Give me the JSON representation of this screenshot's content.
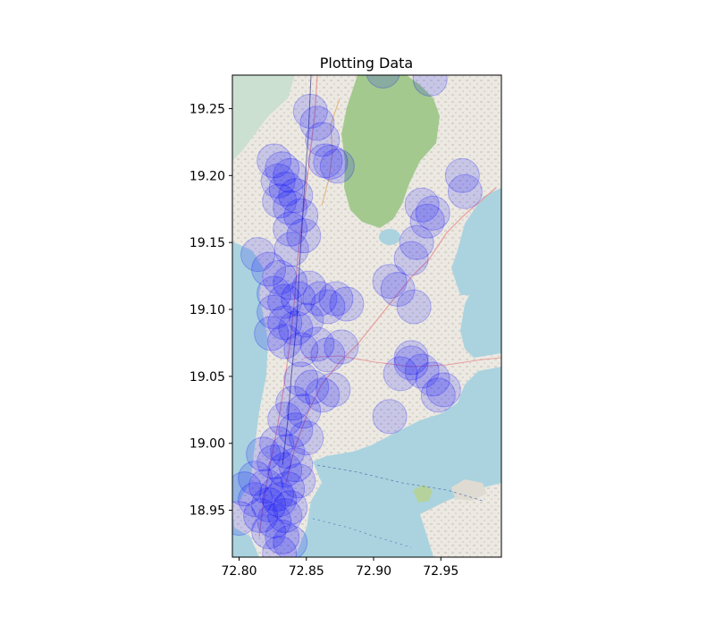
{
  "chart_data": {
    "type": "scatter",
    "title": "Plotting Data",
    "xlabel": "",
    "ylabel": "",
    "xlim": [
      72.795,
      72.995
    ],
    "ylim": [
      18.915,
      19.275
    ],
    "x_ticks": [
      "72.80",
      "72.85",
      "72.90",
      "72.95"
    ],
    "x_tick_values": [
      72.8,
      72.85,
      72.9,
      72.95
    ],
    "y_ticks": [
      "18.95",
      "19.00",
      "19.05",
      "19.10",
      "19.15",
      "19.20",
      "19.25"
    ],
    "y_tick_values": [
      18.95,
      19.0,
      19.05,
      19.1,
      19.15,
      19.2,
      19.25
    ],
    "grid": false,
    "background": "street map of Mumbai",
    "marker_color": "#0000ff",
    "marker_alpha": 0.15,
    "points": [
      {
        "x": 72.853,
        "y": 19.248
      },
      {
        "x": 72.858,
        "y": 19.239
      },
      {
        "x": 72.862,
        "y": 19.227
      },
      {
        "x": 72.868,
        "y": 19.21
      },
      {
        "x": 72.873,
        "y": 19.207
      },
      {
        "x": 72.864,
        "y": 19.211
      },
      {
        "x": 72.826,
        "y": 19.211
      },
      {
        "x": 72.832,
        "y": 19.205
      },
      {
        "x": 72.838,
        "y": 19.2
      },
      {
        "x": 72.829,
        "y": 19.196
      },
      {
        "x": 72.835,
        "y": 19.19
      },
      {
        "x": 72.842,
        "y": 19.185
      },
      {
        "x": 72.83,
        "y": 19.181
      },
      {
        "x": 72.838,
        "y": 19.176
      },
      {
        "x": 72.846,
        "y": 19.17
      },
      {
        "x": 72.838,
        "y": 19.16
      },
      {
        "x": 72.848,
        "y": 19.155
      },
      {
        "x": 72.839,
        "y": 19.145
      },
      {
        "x": 72.822,
        "y": 19.13
      },
      {
        "x": 72.83,
        "y": 19.124
      },
      {
        "x": 72.838,
        "y": 19.12
      },
      {
        "x": 72.826,
        "y": 19.112
      },
      {
        "x": 72.834,
        "y": 19.106
      },
      {
        "x": 72.844,
        "y": 19.108
      },
      {
        "x": 72.852,
        "y": 19.116
      },
      {
        "x": 72.86,
        "y": 19.108
      },
      {
        "x": 72.866,
        "y": 19.102
      },
      {
        "x": 72.872,
        "y": 19.108
      },
      {
        "x": 72.88,
        "y": 19.104
      },
      {
        "x": 72.826,
        "y": 19.098
      },
      {
        "x": 72.834,
        "y": 19.09
      },
      {
        "x": 72.842,
        "y": 19.086
      },
      {
        "x": 72.85,
        "y": 19.092
      },
      {
        "x": 72.824,
        "y": 19.082
      },
      {
        "x": 72.834,
        "y": 19.076
      },
      {
        "x": 72.846,
        "y": 19.07
      },
      {
        "x": 72.858,
        "y": 19.074
      },
      {
        "x": 72.866,
        "y": 19.066
      },
      {
        "x": 72.876,
        "y": 19.072
      },
      {
        "x": 72.912,
        "y": 19.121
      },
      {
        "x": 72.918,
        "y": 19.115
      },
      {
        "x": 72.93,
        "y": 19.102
      },
      {
        "x": 72.936,
        "y": 19.178
      },
      {
        "x": 72.944,
        "y": 19.172
      },
      {
        "x": 72.94,
        "y": 19.166
      },
      {
        "x": 72.932,
        "y": 19.15
      },
      {
        "x": 72.928,
        "y": 19.138
      },
      {
        "x": 72.966,
        "y": 19.2
      },
      {
        "x": 72.968,
        "y": 19.188
      },
      {
        "x": 72.942,
        "y": 19.272
      },
      {
        "x": 72.907,
        "y": 19.278
      },
      {
        "x": 72.814,
        "y": 19.141
      },
      {
        "x": 72.92,
        "y": 19.052
      },
      {
        "x": 72.928,
        "y": 19.06
      },
      {
        "x": 72.936,
        "y": 19.054
      },
      {
        "x": 72.944,
        "y": 19.048
      },
      {
        "x": 72.928,
        "y": 19.064
      },
      {
        "x": 72.952,
        "y": 19.04
      },
      {
        "x": 72.948,
        "y": 19.036
      },
      {
        "x": 72.912,
        "y": 19.02
      },
      {
        "x": 72.846,
        "y": 19.048
      },
      {
        "x": 72.854,
        "y": 19.042
      },
      {
        "x": 72.862,
        "y": 19.036
      },
      {
        "x": 72.87,
        "y": 19.04
      },
      {
        "x": 72.84,
        "y": 19.03
      },
      {
        "x": 72.848,
        "y": 19.024
      },
      {
        "x": 72.834,
        "y": 19.018
      },
      {
        "x": 72.842,
        "y": 19.01
      },
      {
        "x": 72.85,
        "y": 19.004
      },
      {
        "x": 72.828,
        "y": 19.0
      },
      {
        "x": 72.836,
        "y": 18.994
      },
      {
        "x": 72.818,
        "y": 18.992
      },
      {
        "x": 72.826,
        "y": 18.986
      },
      {
        "x": 72.834,
        "y": 18.98
      },
      {
        "x": 72.842,
        "y": 18.984
      },
      {
        "x": 72.812,
        "y": 18.974
      },
      {
        "x": 72.82,
        "y": 18.968
      },
      {
        "x": 72.828,
        "y": 18.962
      },
      {
        "x": 72.836,
        "y": 18.966
      },
      {
        "x": 72.844,
        "y": 18.972
      },
      {
        "x": 72.804,
        "y": 18.966
      },
      {
        "x": 72.812,
        "y": 18.958
      },
      {
        "x": 72.822,
        "y": 18.954
      },
      {
        "x": 72.83,
        "y": 18.958
      },
      {
        "x": 72.838,
        "y": 18.952
      },
      {
        "x": 72.816,
        "y": 18.946
      },
      {
        "x": 72.826,
        "y": 18.942
      },
      {
        "x": 72.834,
        "y": 18.946
      },
      {
        "x": 72.8,
        "y": 18.944
      },
      {
        "x": 72.822,
        "y": 18.934
      },
      {
        "x": 72.832,
        "y": 18.93
      },
      {
        "x": 72.838,
        "y": 18.926
      },
      {
        "x": 72.83,
        "y": 18.918
      }
    ]
  }
}
